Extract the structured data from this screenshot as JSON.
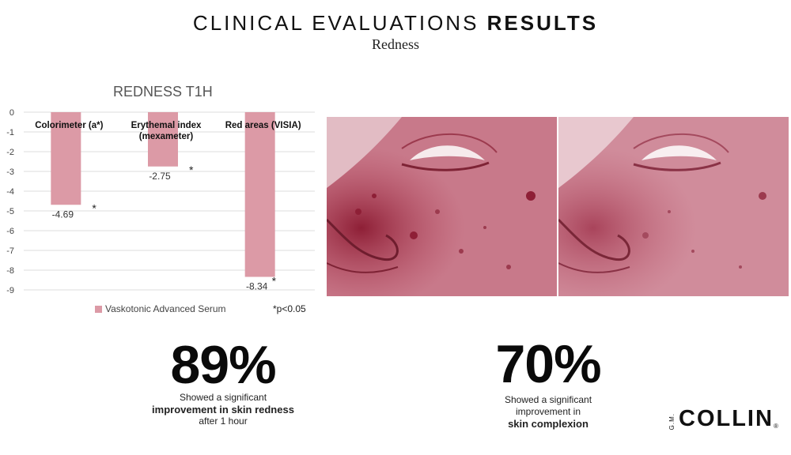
{
  "header": {
    "title_light": "CLINICAL EVALUATIONS",
    "title_bold": "RESULTS",
    "subtitle": "Redness"
  },
  "chart_data": {
    "type": "bar",
    "title": "REDNESS T1H",
    "categories": [
      "Colorimeter (a*)",
      "Erythemal index (mexameter)",
      "Red areas (VISIA)"
    ],
    "category_lines": [
      [
        "Colorimeter (a*)"
      ],
      [
        "Erythemal index",
        "(mexameter)"
      ],
      [
        "Red areas (VISIA)"
      ]
    ],
    "series": [
      {
        "name": "Vaskotonic Advanced Serum",
        "values": [
          -4.69,
          -2.75,
          -8.34
        ],
        "color": "#dc9aa6"
      }
    ],
    "data_labels": [
      "-4.69",
      "-2.75",
      "-8.34"
    ],
    "significance": [
      "*",
      "*",
      "*"
    ],
    "yticks": [
      "0",
      "-1",
      "-2",
      "-3",
      "-4",
      "-5",
      "-6",
      "-7",
      "-8",
      "-9"
    ],
    "ylim": [
      -9,
      0
    ],
    "grid": true,
    "legend_position": "bottom-left",
    "footnote": "*p<0.05"
  },
  "photos": {
    "before": {
      "name": "face-before-photo",
      "tint": "#b5485e"
    },
    "after": {
      "name": "face-after-photo",
      "tint": "#c2677a"
    }
  },
  "stats": {
    "left": {
      "value": "89%",
      "line1": "Showed a significant",
      "line2": "improvement in skin redness",
      "line3": "after 1 hour"
    },
    "right": {
      "value": "70%",
      "line1": "Showed a significant",
      "line2": "improvement in",
      "line3": "skin complexion"
    }
  },
  "brand": {
    "prefix": "G.M.",
    "name": "COLLIN",
    "reg": "®"
  }
}
